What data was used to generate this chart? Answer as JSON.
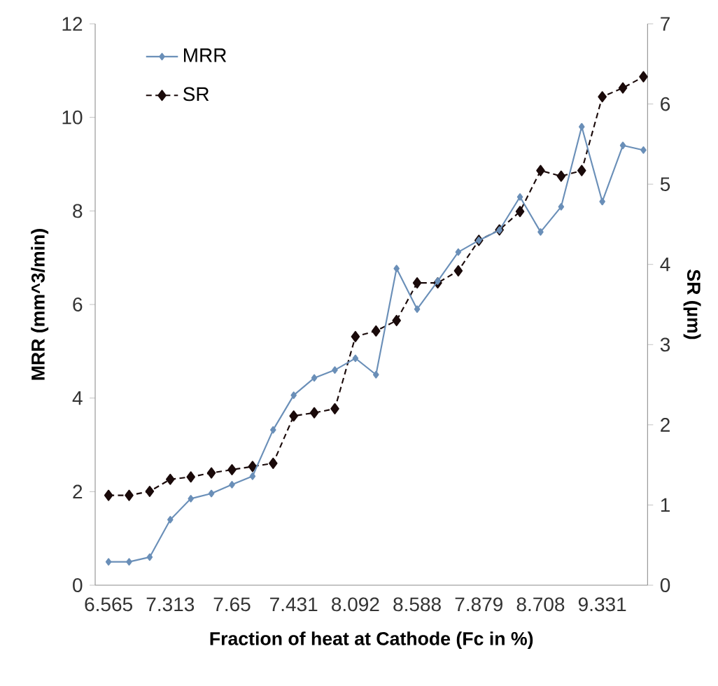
{
  "chart_data": {
    "type": "line",
    "xlabel": "Fraction of heat at Cathode (Fc in %)",
    "ylabel": "MRR (mm^3/min)",
    "y2label": "SR (µm)",
    "categories": [
      "6.565",
      null,
      null,
      "7.313",
      null,
      null,
      "7.65",
      null,
      null,
      "7.431",
      null,
      null,
      "8.092",
      null,
      null,
      "8.588",
      null,
      null,
      "7.879",
      null,
      null,
      "8.708",
      null,
      null,
      "9.331",
      null,
      null
    ],
    "series": [
      {
        "name": "MRR",
        "color": "#6a8fb8",
        "marker": "diamond",
        "line_style": "solid",
        "values": [
          0.5,
          0.5,
          0.6,
          1.4,
          1.85,
          1.96,
          2.15,
          2.33,
          3.32,
          4.06,
          4.43,
          4.6,
          4.85,
          4.5,
          6.77,
          5.9,
          6.5,
          7.12,
          7.37,
          7.59,
          8.3,
          7.55,
          8.09,
          9.8,
          8.2,
          9.4,
          9.3
        ]
      },
      {
        "name": "SR",
        "color": "#1a0a0a",
        "marker": "diamond",
        "line_style": "dashed",
        "axis": "y2",
        "values": [
          1.12,
          1.12,
          1.17,
          1.32,
          1.35,
          1.4,
          1.44,
          1.48,
          1.52,
          2.11,
          2.15,
          2.2,
          3.1,
          3.17,
          3.3,
          3.77,
          3.77,
          3.92,
          4.3,
          4.43,
          4.66,
          5.17,
          5.1,
          5.17,
          6.09,
          6.2,
          6.34
        ]
      }
    ],
    "ylim": [
      0,
      12
    ],
    "yticks": [
      0,
      2,
      4,
      6,
      8,
      10,
      12
    ],
    "y2lim": [
      0,
      7
    ],
    "y2ticks": [
      0,
      1,
      2,
      3,
      4,
      5,
      6,
      7
    ],
    "legend": "top left",
    "grid": false
  }
}
